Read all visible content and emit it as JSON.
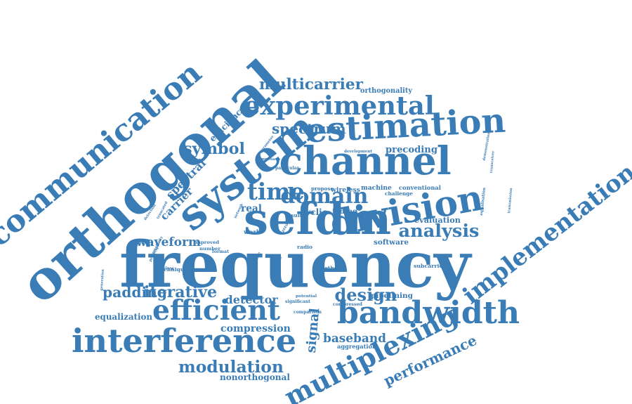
{
  "colors": {
    "word": "#3a7cb5",
    "background": "#ffffff"
  },
  "words": [
    "frequency",
    "orthogonal",
    "channel",
    "system",
    "estimation",
    "sefdm",
    "division",
    "communication",
    "bandwidth",
    "interference",
    "efficient",
    "experimental",
    "implementation",
    "multiplexing",
    "time",
    "domain",
    "signal",
    "modulation",
    "equalisation",
    "multicarrier",
    "analysis",
    "spectrum",
    "symbol",
    "design",
    "padding",
    "iterative",
    "compression",
    "baseband",
    "performance",
    "nonorthogonal",
    "transceiver",
    "transmission",
    "waveform",
    "generation",
    "equalization",
    "detector",
    "detection",
    "carrier",
    "spectral",
    "efficiency",
    "precoding",
    "orthogonality",
    "evaluation",
    "pipelining",
    "aggregation",
    "subcarriers",
    "method",
    "software",
    "conventional",
    "machine",
    "wireless",
    "cyclic",
    "fading",
    "learning",
    "real",
    "network",
    "demonstration",
    "challenge",
    "development",
    "truncated",
    "complexity",
    "parameter",
    "labview",
    "technique",
    "zero",
    "radio",
    "architecture",
    "compressed",
    "prototype",
    "improved",
    "comparison",
    "significant",
    "potential",
    "number",
    "format",
    "particular",
    "approach",
    "propose",
    "work",
    "result"
  ]
}
